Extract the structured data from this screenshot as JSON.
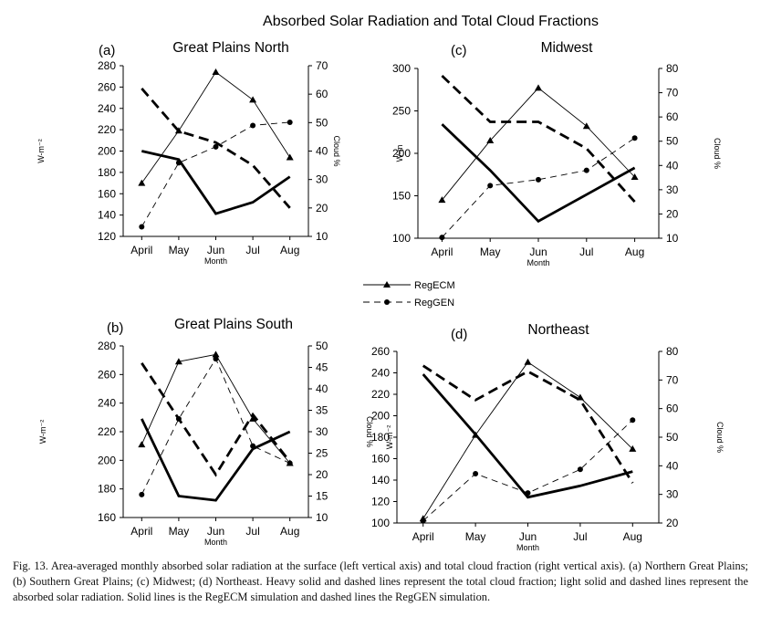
{
  "figure": {
    "title": "Absorbed Solar Radiation and Total Cloud Fractions",
    "legend": {
      "items": [
        {
          "label": "RegECM",
          "style": "solid",
          "marker": "triangle"
        },
        {
          "label": "RegGEN",
          "style": "dashed",
          "marker": "circle"
        }
      ]
    },
    "caption": "Fig. 13. Area-averaged monthly absorbed solar radiation at the surface (left vertical axis) and total cloud fraction (right vertical axis). (a) Northern Great Plains; (b) Southern Great Plains; (c) Midwest; (d) Northeast. Heavy solid and dashed lines represent the total cloud fraction; light solid and dashed lines represent the absorbed solar radiation. Solid lines is the RegECM simulation and dashed lines the RegGEN simulation."
  },
  "chart_data": [
    {
      "type": "line",
      "panel": "(a)",
      "title": "Great Plains North",
      "categories": [
        "April",
        "May",
        "Jun",
        "Jul",
        "Aug"
      ],
      "xlabel": "Month",
      "ylabel": "W-m⁻²",
      "y2label": "Cloud %",
      "ylim": [
        120,
        280
      ],
      "yticks": [
        120,
        140,
        160,
        180,
        200,
        220,
        240,
        260,
        280
      ],
      "y2lim": [
        10,
        70
      ],
      "y2ticks": [
        10,
        20,
        30,
        40,
        50,
        60,
        70
      ],
      "series": [
        {
          "name": "RegECM",
          "quantity": "absorbed solar radiation",
          "axis": "left",
          "style": "light-solid",
          "marker": "triangle",
          "values": [
            170,
            219,
            274,
            248,
            194
          ]
        },
        {
          "name": "RegGEN",
          "quantity": "absorbed solar radiation",
          "axis": "left",
          "style": "light-dashed",
          "marker": "circle",
          "values": [
            129,
            189,
            204,
            224,
            227
          ]
        },
        {
          "name": "RegECM",
          "quantity": "total cloud fraction",
          "axis": "right",
          "style": "heavy-solid",
          "marker": "none",
          "values": [
            40,
            37,
            18,
            22,
            31
          ]
        },
        {
          "name": "RegGEN",
          "quantity": "total cloud fraction",
          "axis": "right",
          "style": "heavy-dashed",
          "marker": "none",
          "values": [
            62,
            47,
            43,
            35,
            20
          ]
        }
      ]
    },
    {
      "type": "line",
      "panel": "(c)",
      "title": "Midwest",
      "categories": [
        "April",
        "May",
        "Jun",
        "Jul",
        "Aug"
      ],
      "xlabel": "Month",
      "ylabel": "W-m",
      "y2label": "Cloud %",
      "ylim": [
        100,
        300
      ],
      "yticks": [
        100,
        150,
        200,
        250,
        300
      ],
      "y2lim": [
        10,
        80
      ],
      "y2ticks": [
        10,
        20,
        30,
        40,
        50,
        60,
        70,
        80
      ],
      "series": [
        {
          "name": "RegECM",
          "quantity": "absorbed solar radiation",
          "axis": "left",
          "style": "light-solid",
          "marker": "triangle",
          "values": [
            145,
            215,
            277,
            232,
            172
          ]
        },
        {
          "name": "RegGEN",
          "quantity": "absorbed solar radiation",
          "axis": "left",
          "style": "light-dashed",
          "marker": "circle",
          "values": [
            101,
            162,
            169,
            180,
            218
          ]
        },
        {
          "name": "RegECM",
          "quantity": "total cloud fraction",
          "axis": "right",
          "style": "heavy-solid",
          "marker": "none",
          "values": [
            57,
            38,
            17,
            28,
            39
          ]
        },
        {
          "name": "RegGEN",
          "quantity": "total cloud fraction",
          "axis": "right",
          "style": "heavy-dashed",
          "marker": "none",
          "values": [
            77,
            58,
            58,
            47,
            25
          ]
        }
      ]
    },
    {
      "type": "line",
      "panel": "(b)",
      "title": "Great Plains South",
      "categories": [
        "April",
        "May",
        "Jun",
        "Jul",
        "Aug"
      ],
      "xlabel": "Month",
      "ylabel": "W-m⁻²",
      "y2label": "Cloud %",
      "ylim": [
        160,
        280
      ],
      "yticks": [
        160,
        180,
        200,
        220,
        240,
        260,
        280
      ],
      "y2lim": [
        10,
        50
      ],
      "y2ticks": [
        10,
        15,
        20,
        25,
        30,
        35,
        40,
        45,
        50
      ],
      "series": [
        {
          "name": "RegECM",
          "quantity": "absorbed solar radiation",
          "axis": "left",
          "style": "light-solid",
          "marker": "triangle",
          "values": [
            211,
            269,
            274,
            229,
            198
          ]
        },
        {
          "name": "RegGEN",
          "quantity": "absorbed solar radiation",
          "axis": "left",
          "style": "light-dashed",
          "marker": "circle",
          "values": [
            176,
            229,
            271,
            210,
            198
          ]
        },
        {
          "name": "RegECM",
          "quantity": "total cloud fraction",
          "axis": "right",
          "style": "heavy-solid",
          "marker": "none",
          "values": [
            33,
            15,
            14,
            26,
            30
          ]
        },
        {
          "name": "RegGEN",
          "quantity": "total cloud fraction",
          "axis": "right",
          "style": "heavy-dashed",
          "marker": "none",
          "values": [
            46,
            33,
            20,
            34,
            23
          ]
        }
      ]
    },
    {
      "type": "line",
      "panel": "(d)",
      "title": "Northeast",
      "categories": [
        "April",
        "May",
        "Jun",
        "Jul",
        "Aug"
      ],
      "xlabel": "Month",
      "ylabel": "W-m⁻²",
      "y2label": "Cloud %",
      "ylim": [
        100,
        260
      ],
      "yticks": [
        100,
        120,
        140,
        160,
        180,
        200,
        220,
        240,
        260
      ],
      "y2lim": [
        20,
        80
      ],
      "y2ticks": [
        20,
        30,
        40,
        50,
        60,
        70,
        80
      ],
      "series": [
        {
          "name": "RegECM",
          "quantity": "absorbed solar radiation",
          "axis": "left",
          "style": "light-solid",
          "marker": "triangle",
          "values": [
            104,
            182,
            250,
            217,
            169
          ]
        },
        {
          "name": "RegGEN",
          "quantity": "absorbed solar radiation",
          "axis": "left",
          "style": "light-dashed",
          "marker": "circle",
          "values": [
            102,
            146,
            128,
            150,
            196
          ]
        },
        {
          "name": "RegECM",
          "quantity": "total cloud fraction",
          "axis": "right",
          "style": "heavy-solid",
          "marker": "none",
          "values": [
            72,
            51,
            29,
            33,
            38
          ]
        },
        {
          "name": "RegGEN",
          "quantity": "total cloud fraction",
          "axis": "right",
          "style": "heavy-dashed",
          "marker": "none",
          "values": [
            75,
            63,
            73,
            63,
            34
          ]
        }
      ]
    }
  ]
}
